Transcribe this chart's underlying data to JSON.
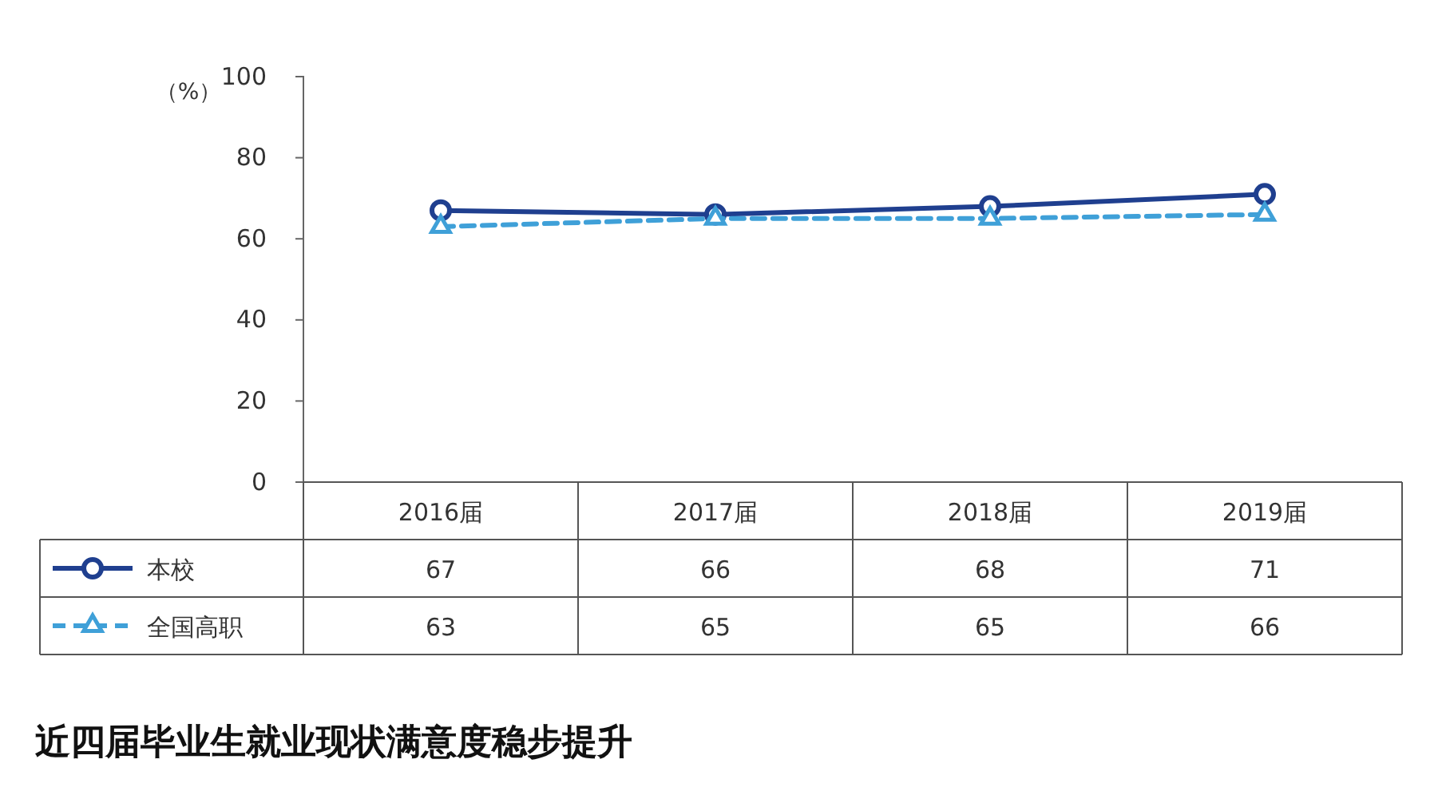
{
  "chart_data": {
    "type": "line",
    "title": "近四届毕业生就业现状满意度稳步提升",
    "ylabel": "（%）",
    "categories": [
      "2016届",
      "2017届",
      "2018届",
      "2019届"
    ],
    "series": [
      {
        "name": "本校",
        "color": "#1f3f8f",
        "values": [
          67,
          66,
          68,
          71
        ],
        "marker": "circle",
        "line_style": "solid"
      },
      {
        "name": "全国高职",
        "color": "#3fa0d8",
        "values": [
          63,
          65,
          65,
          66
        ],
        "marker": "triangle",
        "line_style": "dashed"
      }
    ],
    "ylim": [
      0,
      100
    ],
    "yticks": [
      0,
      20,
      40,
      60,
      80,
      100
    ],
    "data_labels": true,
    "legend": "bottom left",
    "grid": false
  }
}
